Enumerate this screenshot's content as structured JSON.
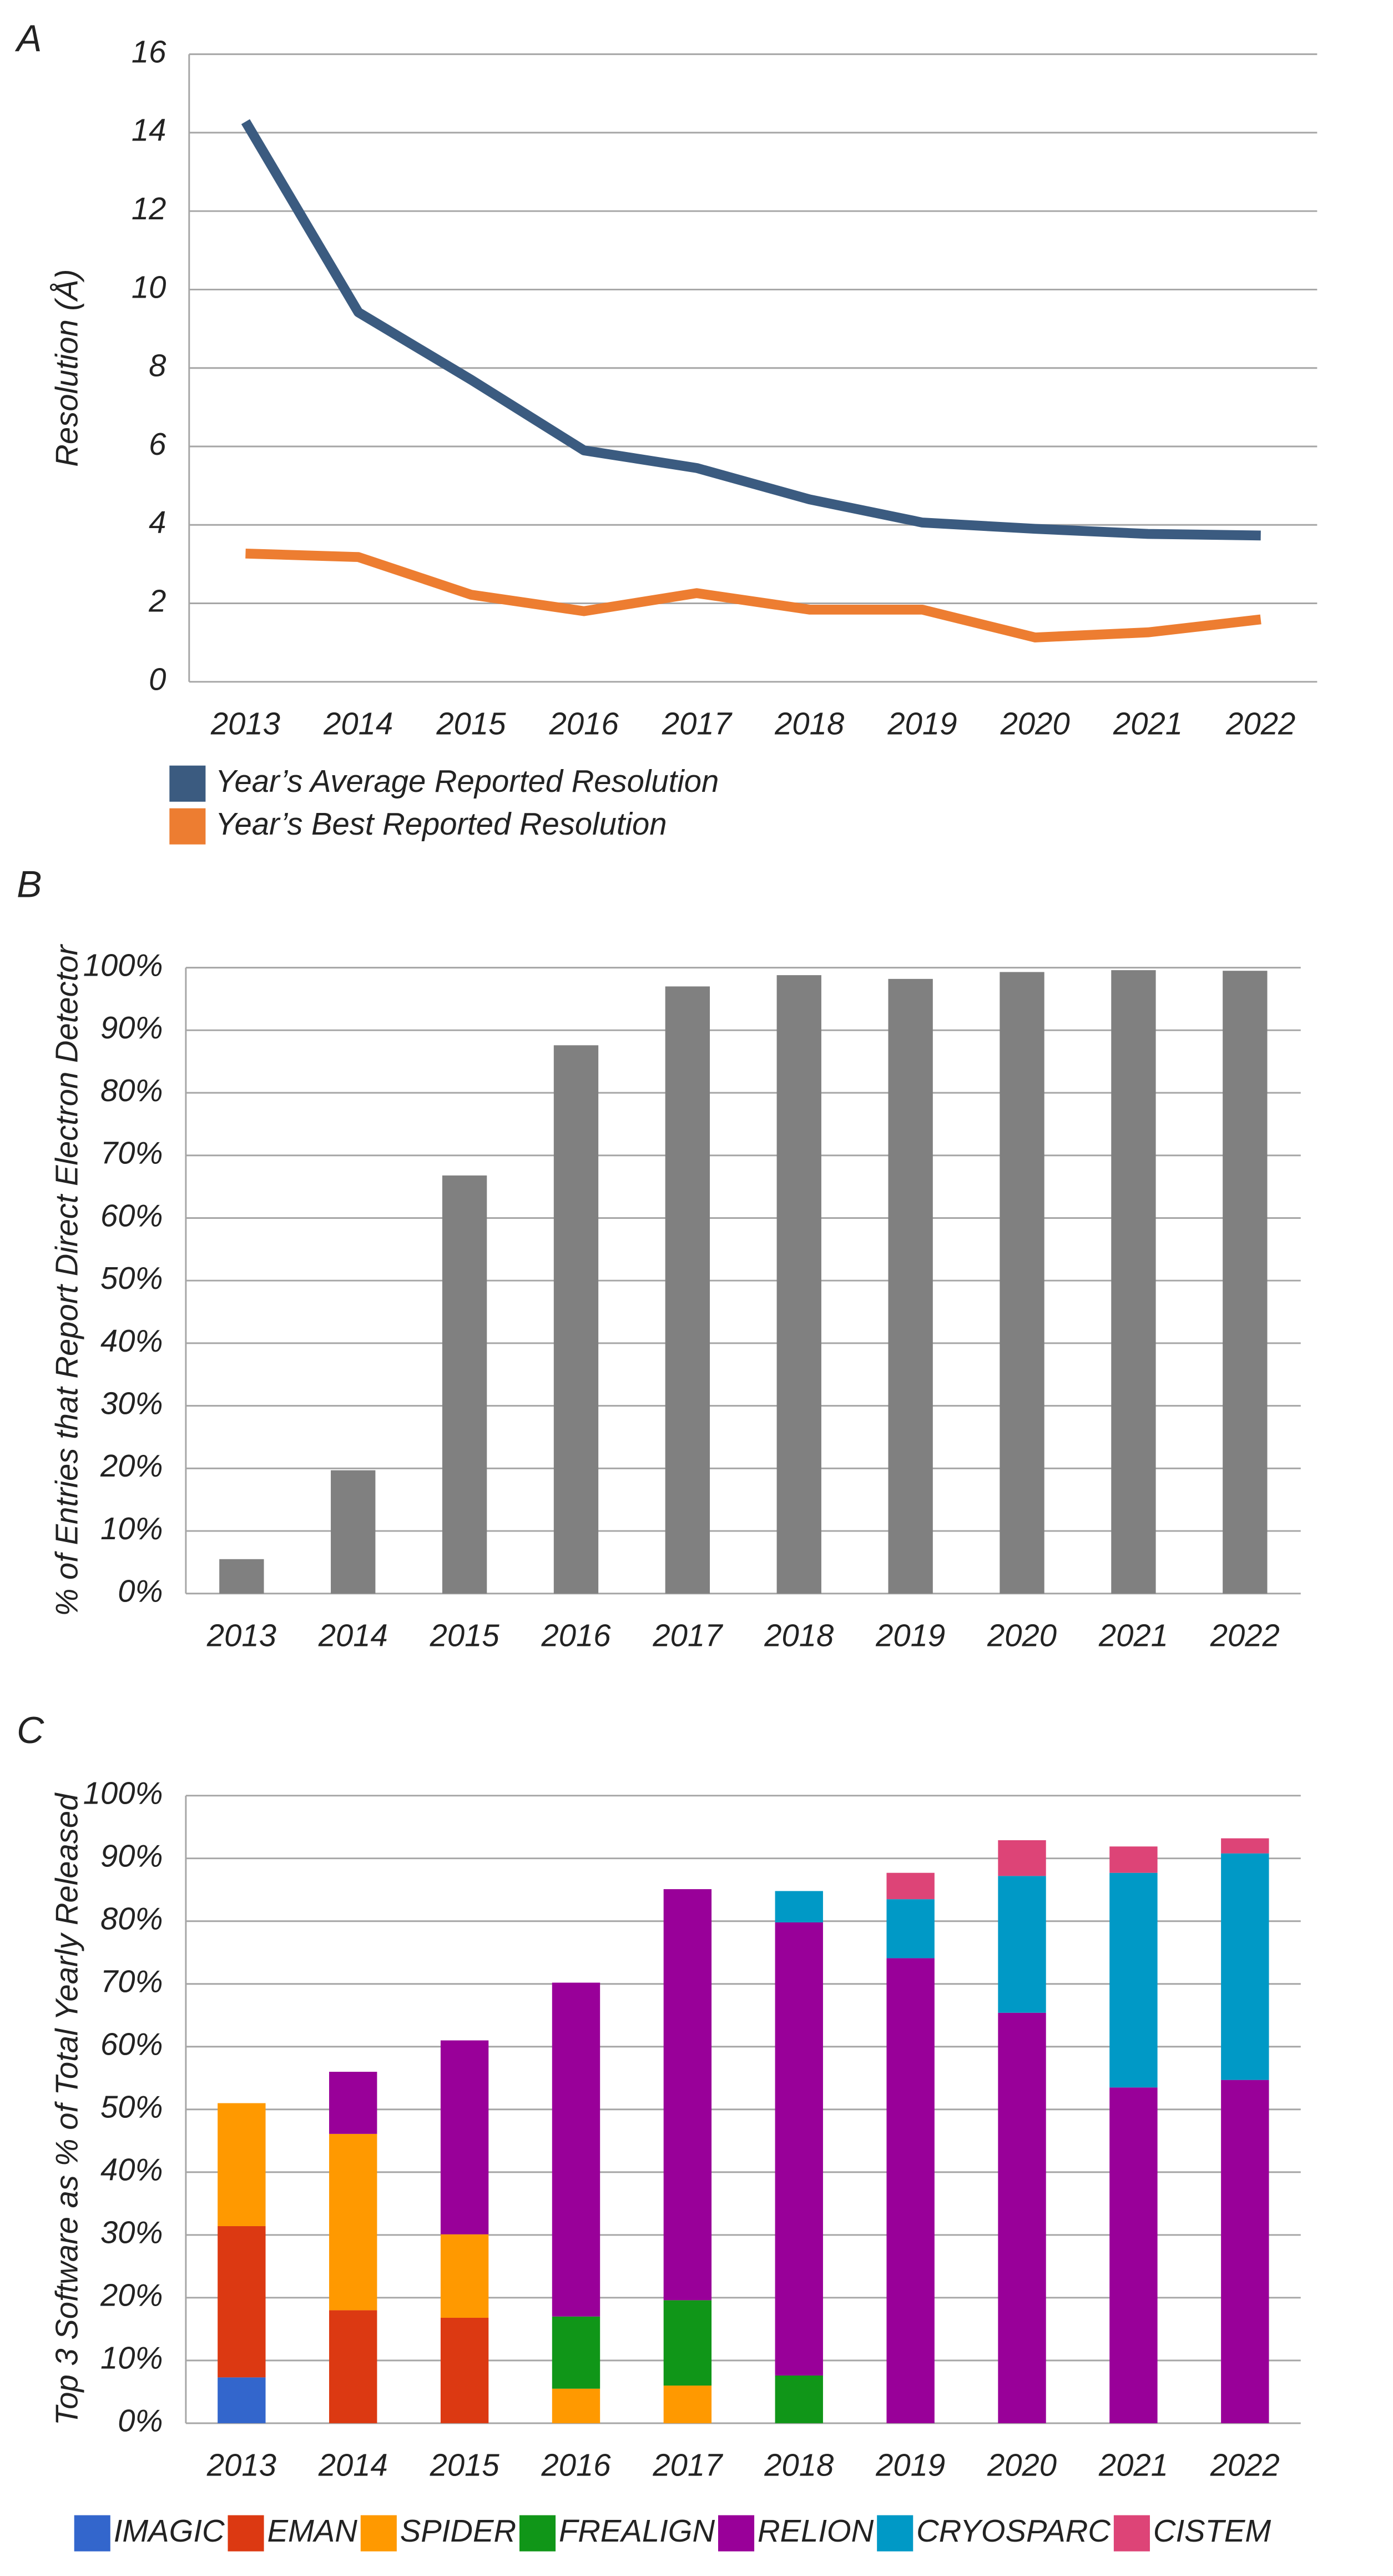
{
  "chart_data": [
    {
      "type": "line",
      "panel": "A",
      "y_label": "Resolution (Å)",
      "categories": [
        "2013",
        "2014",
        "2015",
        "2016",
        "2017",
        "2018",
        "2019",
        "2020",
        "2021",
        "2022"
      ],
      "series": [
        {
          "name": "Year’s Average Reported Resolution",
          "color": "#3b5b80",
          "values": [
            14.28,
            9.42,
            7.7,
            5.9,
            5.45,
            4.65,
            4.06,
            3.9,
            3.77,
            3.73
          ]
        },
        {
          "name": "Year’s Best Reported Resolution",
          "color": "#ed7d31",
          "values": [
            3.27,
            3.18,
            2.22,
            1.8,
            2.26,
            1.84,
            1.84,
            1.13,
            1.26,
            1.59
          ]
        }
      ],
      "ylim": [
        0,
        16
      ],
      "yticks": [
        0,
        2,
        4,
        6,
        8,
        10,
        12,
        14,
        16
      ],
      "grid": true,
      "legend": "bottom"
    },
    {
      "type": "bar",
      "panel": "B",
      "y_label": "% of Entries that Report Direct Electron Detector",
      "categories": [
        "2013",
        "2014",
        "2015",
        "2016",
        "2017",
        "2018",
        "2019",
        "2020",
        "2021",
        "2022"
      ],
      "values": [
        5.5,
        19.7,
        66.8,
        87.6,
        97,
        98.8,
        98.2,
        99.3,
        99.6,
        99.5
      ],
      "color": "#808080",
      "ylim": [
        0,
        100
      ],
      "yticks": [
        {
          "value": 0,
          "label": "0%"
        },
        {
          "value": 10,
          "label": "10%"
        },
        {
          "value": 20,
          "label": "20%"
        },
        {
          "value": 30,
          "label": "30%"
        },
        {
          "value": 40,
          "label": "40%"
        },
        {
          "value": 50,
          "label": "50%"
        },
        {
          "value": 60,
          "label": "60%"
        },
        {
          "value": 70,
          "label": "70%"
        },
        {
          "value": 80,
          "label": "80%"
        },
        {
          "value": 90,
          "label": "90%"
        },
        {
          "value": 100,
          "label": "100%"
        }
      ],
      "grid": true
    },
    {
      "type": "stacked_bar",
      "panel": "C",
      "y_label": "Top 3 Software as % of Total Yearly Released",
      "categories": [
        "2013",
        "2014",
        "2015",
        "2016",
        "2017",
        "2018",
        "2019",
        "2020",
        "2021",
        "2022"
      ],
      "series": [
        {
          "name": "IMAGIC",
          "color": "#3366cc",
          "values": [
            7.3,
            null,
            null,
            null,
            null,
            null,
            null,
            null,
            null,
            null
          ]
        },
        {
          "name": "EMAN",
          "color": "#dc3912",
          "values": [
            24.1,
            18,
            16.8,
            null,
            null,
            null,
            null,
            null,
            null,
            null
          ]
        },
        {
          "name": "SPIDER",
          "color": "#ff9900",
          "values": [
            19.6,
            28.1,
            13.3,
            5.5,
            6,
            null,
            null,
            null,
            null,
            null
          ]
        },
        {
          "name": "FREALIGN",
          "color": "#109618",
          "values": [
            null,
            null,
            null,
            11.5,
            13.6,
            7.6,
            null,
            null,
            null,
            null
          ]
        },
        {
          "name": "RELION",
          "color": "#990099",
          "values": [
            null,
            9.9,
            30.9,
            53.2,
            65.5,
            72.2,
            74.1,
            65.4,
            53.5,
            54.7
          ]
        },
        {
          "name": "CRYOSPARC",
          "color": "#0099c6",
          "values": [
            null,
            null,
            null,
            null,
            null,
            5,
            9.4,
            21.8,
            34.2,
            36.1
          ]
        },
        {
          "name": "CISTEM",
          "color": "#dd4477",
          "values": [
            null,
            null,
            null,
            null,
            null,
            null,
            4.2,
            5.7,
            4.2,
            2.4
          ]
        }
      ],
      "ylim": [
        0,
        100
      ],
      "yticks": [
        {
          "value": 0,
          "label": "0%"
        },
        {
          "value": 10,
          "label": "10%"
        },
        {
          "value": 20,
          "label": "20%"
        },
        {
          "value": 30,
          "label": "30%"
        },
        {
          "value": 40,
          "label": "40%"
        },
        {
          "value": 50,
          "label": "50%"
        },
        {
          "value": 60,
          "label": "60%"
        },
        {
          "value": 70,
          "label": "70%"
        },
        {
          "value": 80,
          "label": "80%"
        },
        {
          "value": 90,
          "label": "90%"
        },
        {
          "value": 100,
          "label": "100%"
        }
      ],
      "grid": true,
      "legend": "bottom"
    }
  ]
}
